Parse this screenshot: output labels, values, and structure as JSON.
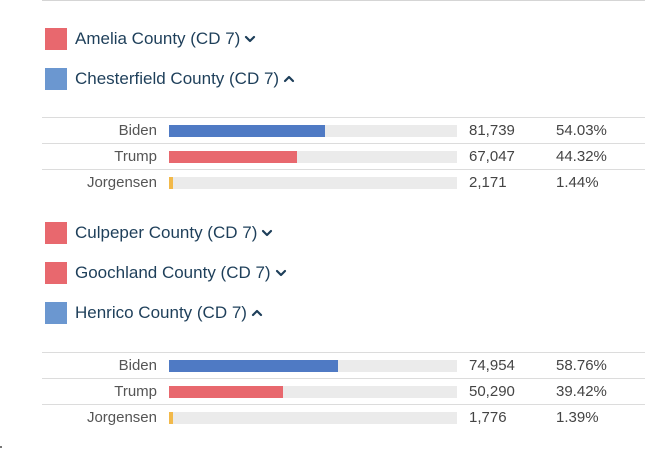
{
  "colors": {
    "republican": "#e8686e",
    "democrat": "#6b97d0",
    "bar_democrat": "#4f7ac4",
    "bar_republican": "#e8686e",
    "bar_libertarian": "#f2b94a",
    "track": "#ebebeb",
    "county_text": "#1e3f5a"
  },
  "counties": [
    {
      "name": "Amelia County (CD 7)",
      "color": "#e8686e",
      "expanded": false,
      "chevron_icon": "chevron-down-icon"
    },
    {
      "name": "Chesterfield County (CD 7)",
      "color": "#6b97d0",
      "expanded": true,
      "chevron_icon": "chevron-up-icon"
    },
    {
      "name": "Culpeper County (CD 7)",
      "color": "#e8686e",
      "expanded": false,
      "chevron_icon": "chevron-down-icon"
    },
    {
      "name": "Goochland County (CD 7)",
      "color": "#e8686e",
      "expanded": false,
      "chevron_icon": "chevron-down-icon"
    },
    {
      "name": "Henrico County (CD 7)",
      "color": "#6b97d0",
      "expanded": true,
      "chevron_icon": "chevron-up-icon"
    }
  ],
  "chesterfield_results": [
    {
      "candidate": "Biden",
      "votes": "81,739",
      "percent": "54.03%",
      "share": 0.5403,
      "color": "#4f7ac4"
    },
    {
      "candidate": "Trump",
      "votes": "67,047",
      "percent": "44.32%",
      "share": 0.4432,
      "color": "#e8686e"
    },
    {
      "candidate": "Jorgensen",
      "votes": "2,171",
      "percent": "1.44%",
      "share": 0.0144,
      "color": "#f2b94a"
    }
  ],
  "henrico_results": [
    {
      "candidate": "Biden",
      "votes": "74,954",
      "percent": "58.76%",
      "share": 0.5876,
      "color": "#4f7ac4"
    },
    {
      "candidate": "Trump",
      "votes": "50,290",
      "percent": "39.42%",
      "share": 0.3942,
      "color": "#e8686e"
    },
    {
      "candidate": "Jorgensen",
      "votes": "1,776",
      "percent": "1.39%",
      "share": 0.0139,
      "color": "#f2b94a"
    }
  ]
}
